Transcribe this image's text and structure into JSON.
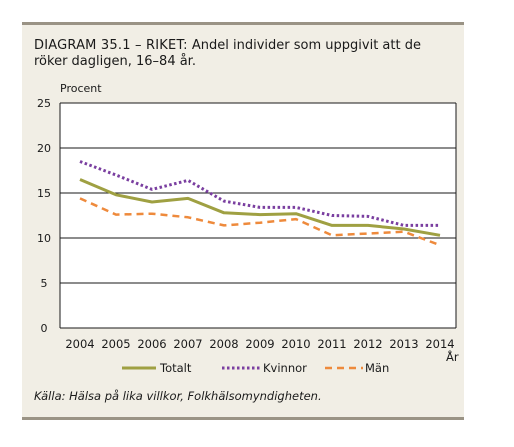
{
  "title_prefix": "DIAGRAM 35.1 – RIKET:",
  "title_text": "Andel individer som uppgivit att de röker dagligen, 16–84 år.",
  "source": "Källa: Hälsa på lika villkor, Folkhälsomyndigheten.",
  "colors": {
    "totalt": "#9fa042",
    "kvinnor": "#7a3fa0",
    "man": "#ee8a3c",
    "panel": "#f1eee5",
    "grid": "#1a1a1a"
  },
  "chart_data": {
    "type": "line",
    "x": [
      "2004",
      "2005",
      "2006",
      "2007",
      "2008",
      "2009",
      "2010",
      "2011",
      "2012",
      "2013",
      "2014"
    ],
    "xlabel": "År",
    "ylabel": "Procent",
    "ylim": [
      0,
      25
    ],
    "yticks": [
      "0",
      "5",
      "10",
      "15",
      "20",
      "25"
    ],
    "grid": true,
    "legend_position": "bottom",
    "series": [
      {
        "name": "Totalt",
        "style": "solid",
        "values": [
          16.5,
          14.8,
          14.0,
          14.4,
          12.8,
          12.6,
          12.7,
          11.4,
          11.4,
          11.0,
          10.3
        ]
      },
      {
        "name": "Kvinnor",
        "style": "dotted",
        "values": [
          18.5,
          17.0,
          15.4,
          16.4,
          14.1,
          13.4,
          13.4,
          12.5,
          12.4,
          11.4,
          11.4
        ]
      },
      {
        "name": "Män",
        "style": "dashed",
        "values": [
          14.4,
          12.6,
          12.7,
          12.3,
          11.4,
          11.7,
          12.1,
          10.3,
          10.5,
          10.7,
          9.2
        ]
      }
    ]
  }
}
